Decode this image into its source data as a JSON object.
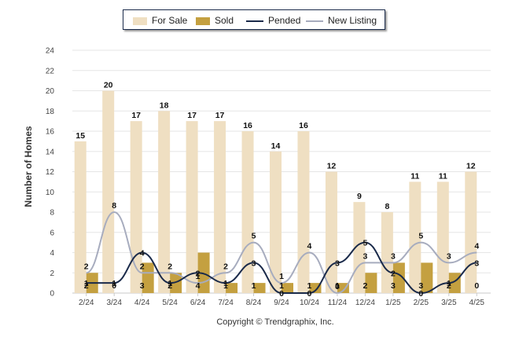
{
  "legend": {
    "for_sale": "For Sale",
    "sold": "Sold",
    "pended": "Pended",
    "new_listing": "New Listing"
  },
  "ylabel": "Number of Homes",
  "copyright": "Copyright © Trendgraphix, Inc.",
  "colors": {
    "for_sale": "#efdfc2",
    "sold": "#c4a040",
    "pended": "#1a2a4a",
    "new_listing": "#a7acbe",
    "grid": "#e6e6e6"
  },
  "chart_data": {
    "type": "bar",
    "categories": [
      "2/24",
      "3/24",
      "4/24",
      "5/24",
      "6/24",
      "7/24",
      "8/24",
      "9/24",
      "10/24",
      "11/24",
      "12/24",
      "1/25",
      "2/25",
      "3/25",
      "4/25"
    ],
    "ylim": [
      0,
      24
    ],
    "yticks": [
      0,
      2,
      4,
      6,
      8,
      10,
      12,
      14,
      16,
      18,
      20,
      22,
      24
    ],
    "ylabel": "Number of Homes",
    "grid": true,
    "legend_position": "top",
    "series": [
      {
        "name": "For Sale",
        "kind": "bar",
        "values": [
          15,
          20,
          17,
          18,
          17,
          17,
          16,
          14,
          16,
          12,
          9,
          8,
          11,
          11,
          12
        ]
      },
      {
        "name": "Sold",
        "kind": "bar",
        "values": [
          2,
          0,
          3,
          2,
          4,
          1,
          1,
          1,
          1,
          1,
          2,
          3,
          3,
          2,
          0
        ]
      },
      {
        "name": "Pended",
        "kind": "line",
        "values": [
          1,
          1,
          4,
          1,
          2,
          1,
          3,
          0,
          0,
          3,
          5,
          2,
          0,
          1,
          3
        ]
      },
      {
        "name": "New Listing",
        "kind": "line",
        "values": [
          2,
          8,
          2,
          2,
          1,
          2,
          5,
          1,
          4,
          0,
          3,
          3,
          5,
          3,
          4
        ]
      }
    ]
  }
}
